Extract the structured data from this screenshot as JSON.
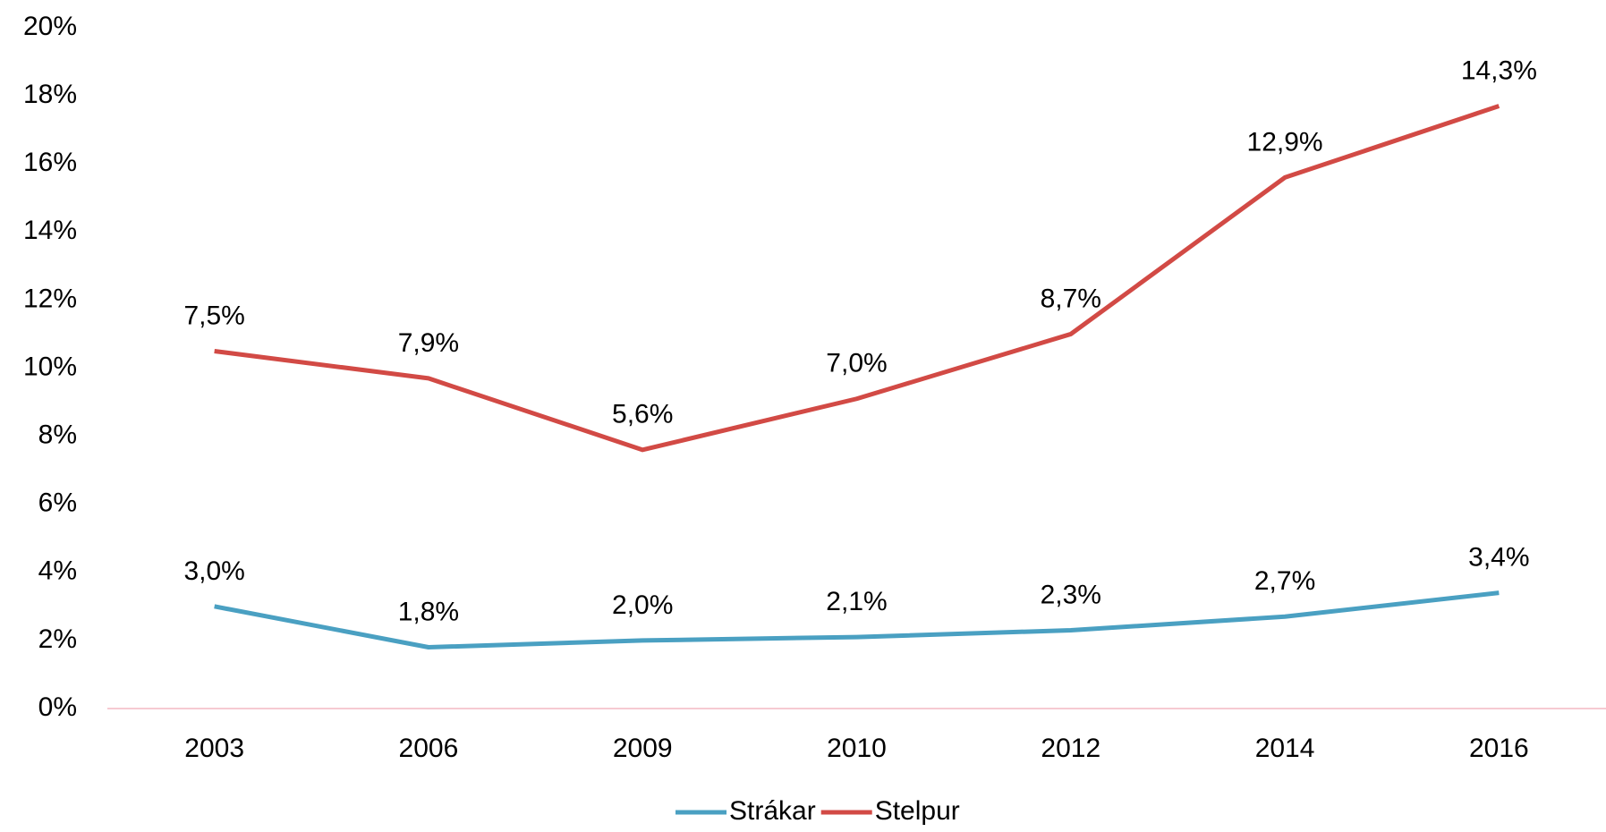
{
  "chart_data": {
    "type": "line",
    "stacked": true,
    "categories": [
      "2003",
      "2006",
      "2009",
      "2010",
      "2012",
      "2014",
      "2016"
    ],
    "series": [
      {
        "name": "Strákar",
        "color": "#4aa0c2",
        "values": [
          3.0,
          1.8,
          2.0,
          2.1,
          2.3,
          2.7,
          3.4
        ],
        "value_labels": [
          "3,0%",
          "1,8%",
          "2,0%",
          "2,1%",
          "2,3%",
          "2,7%",
          "3,4%"
        ]
      },
      {
        "name": "Stelpur",
        "color": "#d24a45",
        "values": [
          7.5,
          7.9,
          5.6,
          7.0,
          8.7,
          12.9,
          14.3
        ],
        "value_labels": [
          "7,5%",
          "7,9%",
          "5,6%",
          "7,0%",
          "8,7%",
          "12,9%",
          "14,3%"
        ]
      }
    ],
    "ylim": [
      0,
      20
    ],
    "yticks": [
      {
        "value": 0,
        "label": "0%"
      },
      {
        "value": 2,
        "label": "2%"
      },
      {
        "value": 4,
        "label": "4%"
      },
      {
        "value": 6,
        "label": "6%"
      },
      {
        "value": 8,
        "label": "8%"
      },
      {
        "value": 10,
        "label": "10%"
      },
      {
        "value": 12,
        "label": "12%"
      },
      {
        "value": 14,
        "label": "14%"
      },
      {
        "value": 16,
        "label": "16%"
      },
      {
        "value": 18,
        "label": "18%"
      },
      {
        "value": 20,
        "label": "20%"
      }
    ],
    "grid": false,
    "legend": "bottom"
  }
}
